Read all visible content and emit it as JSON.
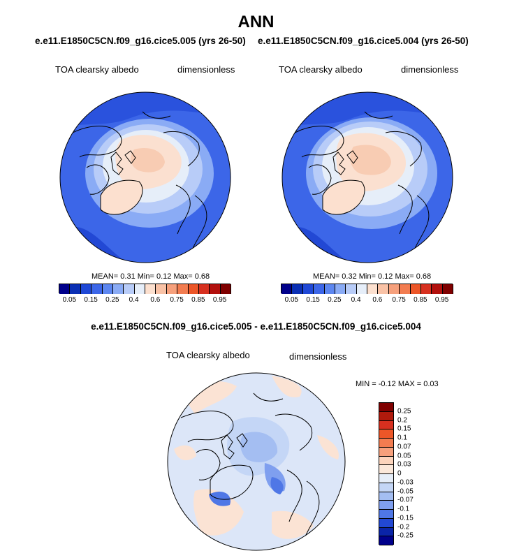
{
  "title": "ANN",
  "cases": {
    "left": "e.e11.E1850C5CN.f09_g16.cice5.005 (yrs 26-50)",
    "right": "e.e11.E1850C5CN.f09_g16.cice5.004 (yrs 26-50)"
  },
  "diff_title": "e.e11.E1850C5CN.f09_g16.cice5.005 - e.e11.E1850C5CN.f09_g16.cice5.004",
  "chart_data": [
    {
      "type": "heatmap",
      "projection": "north polar stereographic",
      "variable": "TOA clearsky albedo",
      "units": "dimensionless",
      "stats": {
        "mean_label": "MEAN=",
        "mean": "0.31",
        "min_label": "Min=",
        "min": "0.12",
        "max_label": "Max=",
        "max": "0.68"
      },
      "levels": [
        "0.05",
        "0.15",
        "0.25",
        "0.4",
        "0.6",
        "0.75",
        "0.85",
        "0.95"
      ],
      "colors": [
        "#00008b",
        "#0a2fb4",
        "#1f48d6",
        "#3c66e8",
        "#5c86f0",
        "#8aabf5",
        "#b8ccf8",
        "#e6eef9",
        "#fce0cf",
        "#f9c2a6",
        "#f6a07c",
        "#f27c50",
        "#ec5628",
        "#d7301f",
        "#b2100d",
        "#7f0000"
      ]
    },
    {
      "type": "heatmap",
      "projection": "north polar stereographic",
      "variable": "TOA clearsky albedo",
      "units": "dimensionless",
      "stats": {
        "mean_label": "MEAN=",
        "mean": "0.32",
        "min_label": "Min=",
        "min": "0.12",
        "max_label": "Max=",
        "max": "0.68"
      },
      "levels": [
        "0.05",
        "0.15",
        "0.25",
        "0.4",
        "0.6",
        "0.75",
        "0.85",
        "0.95"
      ],
      "colors": [
        "#00008b",
        "#0a2fb4",
        "#1f48d6",
        "#3c66e8",
        "#5c86f0",
        "#8aabf5",
        "#b8ccf8",
        "#e6eef9",
        "#fce0cf",
        "#f9c2a6",
        "#f6a07c",
        "#f27c50",
        "#ec5628",
        "#d7301f",
        "#b2100d",
        "#7f0000"
      ]
    },
    {
      "type": "heatmap",
      "projection": "north polar stereographic",
      "variable": "TOA clearsky albedo",
      "units": "dimensionless",
      "stats_text": "MIN =  -0.12 MAX =   0.03",
      "levels": [
        "0.25",
        "0.2",
        "0.15",
        "0.1",
        "0.07",
        "0.05",
        "0.03",
        "0",
        "-0.03",
        "-0.05",
        "-0.07",
        "-0.1",
        "-0.15",
        "-0.2",
        "-0.25"
      ],
      "colors": [
        "#7f0000",
        "#b01a0c",
        "#d7301f",
        "#ec5628",
        "#f27c50",
        "#f6a07c",
        "#fcd4bc",
        "#fbe8da",
        "#e6eef9",
        "#c4d6f6",
        "#a4bef2",
        "#7f9fef",
        "#4f77e6",
        "#2248d4",
        "#0a24a8",
        "#00008b"
      ]
    }
  ]
}
